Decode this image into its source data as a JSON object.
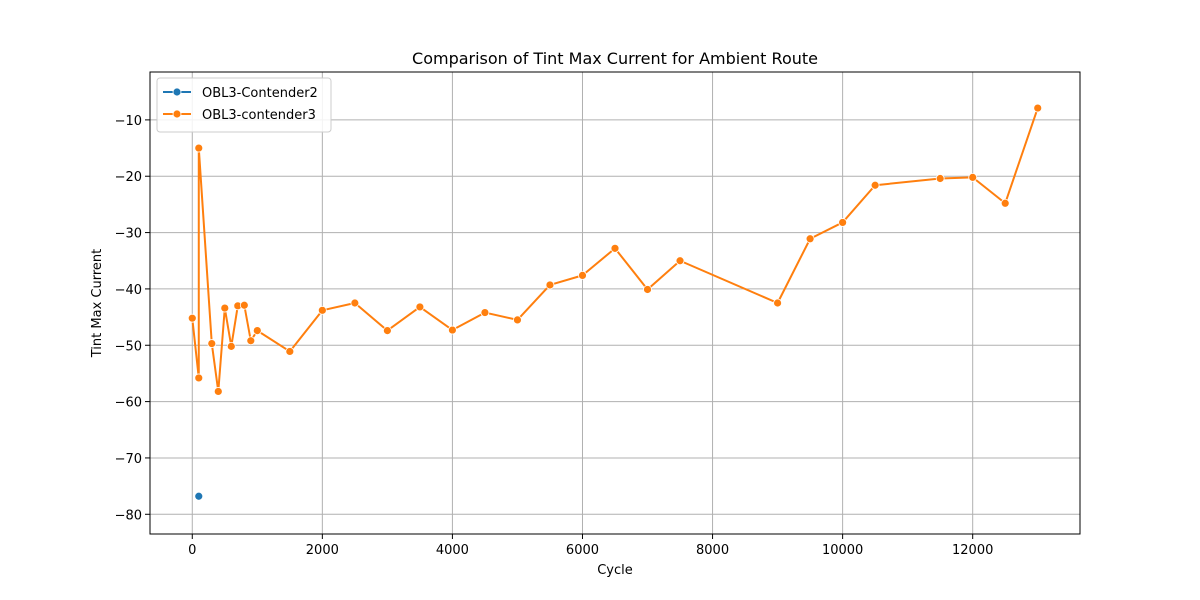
{
  "chart_data": {
    "type": "line",
    "title": "Comparison of Tint Max Current for Ambient Route",
    "xlabel": "Cycle",
    "ylabel": "Tint Max Current",
    "xlim": [
      -650,
      13650
    ],
    "ylim": [
      -83.5,
      -1.5
    ],
    "xticks": [
      0,
      2000,
      4000,
      6000,
      8000,
      10000,
      12000
    ],
    "yticks": [
      -80,
      -70,
      -60,
      -50,
      -40,
      -30,
      -20,
      -10
    ],
    "grid": true,
    "legend_position": "top-left",
    "series": [
      {
        "name": "OBL3-Contender2",
        "color": "#1f77b4",
        "x": [
          100
        ],
        "y": [
          -76.8
        ]
      },
      {
        "name": "OBL3-contender3",
        "color": "#ff7f0e",
        "x": [
          0,
          100,
          100,
          300,
          400,
          500,
          600,
          700,
          800,
          900,
          1000,
          1500,
          2000,
          2500,
          3000,
          3500,
          4000,
          4500,
          5000,
          5500,
          6000,
          6500,
          7000,
          7500,
          9000,
          9500,
          10000,
          10500,
          11500,
          12000,
          12500,
          13000
        ],
        "y": [
          -45.2,
          -55.8,
          -15.0,
          -49.7,
          -58.2,
          -43.4,
          -50.2,
          -43.0,
          -42.9,
          -49.2,
          -47.4,
          -51.1,
          -43.8,
          -42.5,
          -47.4,
          -43.2,
          -47.3,
          -44.2,
          -45.5,
          -39.3,
          -37.6,
          -32.8,
          -40.1,
          -35.0,
          -42.5,
          -31.1,
          -28.2,
          -21.6,
          -20.4,
          -20.2,
          -24.8,
          -7.9
        ]
      }
    ]
  }
}
